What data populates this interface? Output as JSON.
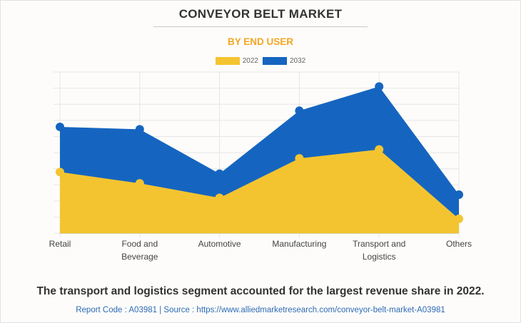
{
  "chart_data": {
    "type": "area",
    "title": "CONVEYOR BELT MARKET",
    "subtitle": "BY END USER",
    "xlabel": "",
    "ylabel": "",
    "categories": [
      "Retail",
      "Food and Beverage",
      "Automotive",
      "Manufacturing",
      "Transport and Logistics",
      "Others"
    ],
    "category_lines": [
      [
        "Retail"
      ],
      [
        "Food and",
        "Beverage"
      ],
      [
        "Automotive"
      ],
      [
        "Manufacturing"
      ],
      [
        "Transport and",
        "Logistics"
      ],
      [
        "Others"
      ]
    ],
    "series": [
      {
        "name": "2032",
        "color": "#1565c0",
        "values": [
          6.6,
          6.45,
          3.7,
          7.6,
          9.1,
          2.4
        ]
      },
      {
        "name": "2022",
        "color": "#f4c430",
        "values": [
          3.8,
          3.1,
          2.2,
          4.65,
          5.2,
          0.9
        ]
      }
    ],
    "ylim": [
      0,
      10
    ],
    "y_gridlines": 10,
    "y_tick_labels_shown": false,
    "grid": true,
    "legend": [
      "2022",
      "2032"
    ],
    "legend_position": "top-center"
  },
  "legend_items": [
    {
      "label": "2022",
      "color": "#f4c430"
    },
    {
      "label": "2032",
      "color": "#1565c0"
    }
  ],
  "footer": {
    "headline": "The transport and logistics segment accounted for the largest revenue share in 2022.",
    "source": "Report Code : A03981  |  Source : https://www.alliedmarketresearch.com/conveyor-belt-market-A03981"
  }
}
